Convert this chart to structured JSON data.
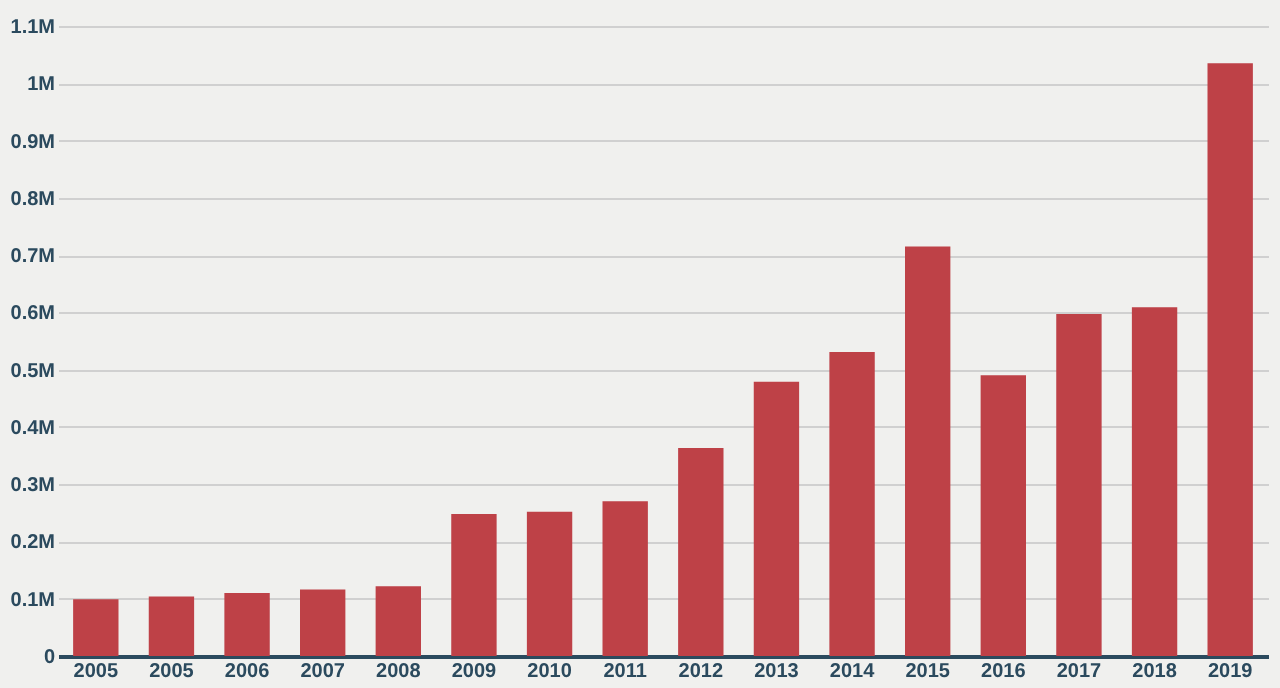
{
  "chart_data": {
    "type": "bar",
    "categories": [
      "2005",
      "2005",
      "2006",
      "2007",
      "2008",
      "2009",
      "2010",
      "2011",
      "2012",
      "2013",
      "2014",
      "2015",
      "2016",
      "2017",
      "2018",
      "2019"
    ],
    "values": [
      99000,
      104000,
      110000,
      116000,
      122000,
      248000,
      252000,
      270000,
      363000,
      479000,
      531000,
      715000,
      490000,
      597000,
      609000,
      1035000
    ],
    "color": "#be4147",
    "ylim": [
      0,
      1100000
    ],
    "yticks": [
      0,
      {
        "value": 100000,
        "label": "0.1M"
      },
      {
        "value": 200000,
        "label": "0.2M"
      },
      {
        "value": 300000,
        "label": "0.3M"
      },
      {
        "value": 400000,
        "label": "0.4M"
      },
      {
        "value": 500000,
        "label": "0.5M"
      },
      {
        "value": 600000,
        "label": "0.6M"
      },
      {
        "value": 700000,
        "label": "0.7M"
      },
      {
        "value": 800000,
        "label": "0.8M"
      },
      {
        "value": 900000,
        "label": "0.9M"
      },
      {
        "value": 1000000,
        "label": "1M"
      },
      {
        "value": 1100000,
        "label": "1.1M"
      }
    ],
    "grid": "y"
  }
}
